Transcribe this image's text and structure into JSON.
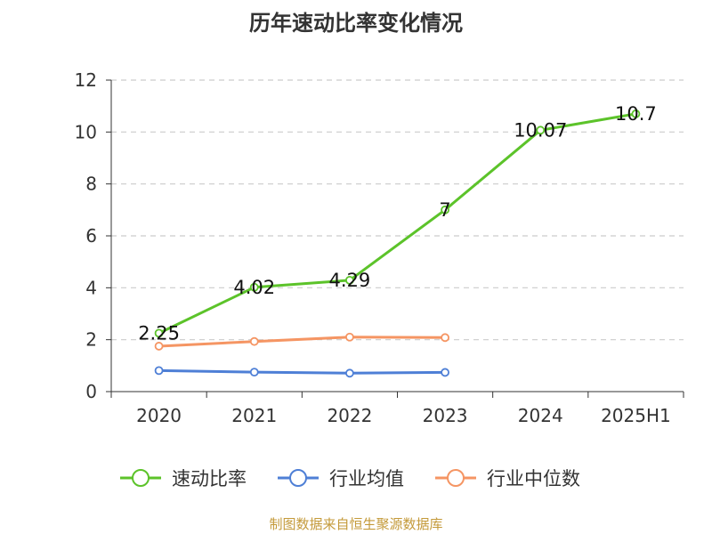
{
  "chart_data": {
    "type": "line",
    "title": "历年速动比率变化情况",
    "categories": [
      "2020",
      "2021",
      "2022",
      "2023",
      "2024",
      "2025H1"
    ],
    "ylim": [
      0,
      12
    ],
    "yticks": [
      0,
      2,
      4,
      6,
      8,
      10,
      12
    ],
    "grid": true,
    "legend_position": "bottom",
    "series": [
      {
        "name": "速动比率",
        "color": "#5cc32a",
        "values": [
          2.25,
          4.02,
          4.29,
          7,
          10.07,
          10.7
        ],
        "labels": [
          "2.25",
          "4.02",
          "4.29",
          "7",
          "10.07",
          "10.7"
        ]
      },
      {
        "name": "行业均值",
        "color": "#4e7fd6",
        "values": [
          0.81,
          0.75,
          0.71,
          0.74,
          null,
          null
        ]
      },
      {
        "name": "行业中位数",
        "color": "#f59563",
        "values": [
          1.75,
          1.93,
          2.1,
          2.08,
          null,
          null
        ]
      }
    ]
  },
  "footer": {
    "source": "制图数据来自恒生聚源数据库"
  }
}
